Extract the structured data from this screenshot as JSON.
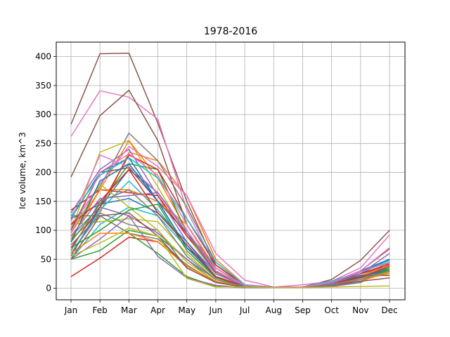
{
  "chart_data": {
    "type": "line",
    "title": "1978-2016",
    "xlabel": "",
    "ylabel": "Ice volume, km^3",
    "categories": [
      "Jan",
      "Feb",
      "Mar",
      "Apr",
      "May",
      "Jun",
      "Jul",
      "Aug",
      "Sep",
      "Oct",
      "Nov",
      "Dec"
    ],
    "ylim": [
      -20,
      425
    ],
    "yticks": [
      0,
      50,
      100,
      150,
      200,
      250,
      300,
      350,
      400
    ],
    "grid": true,
    "legend": "none",
    "colors": [
      "#1f77b4",
      "#ff7f0e",
      "#2ca02c",
      "#d62728",
      "#9467bd",
      "#8c564b",
      "#e377c2",
      "#7f7f7f",
      "#bcbd22",
      "#17becf"
    ],
    "series": [
      {
        "values": [
          120,
          200,
          225,
          150,
          70,
          30,
          4,
          2,
          2,
          10,
          30,
          50
        ]
      },
      {
        "values": [
          85,
          130,
          235,
          220,
          160,
          50,
          6,
          2,
          2,
          8,
          20,
          45
        ]
      },
      {
        "values": [
          50,
          65,
          100,
          90,
          50,
          10,
          2,
          1,
          1,
          5,
          15,
          30
        ]
      },
      {
        "values": [
          20,
          52,
          88,
          80,
          40,
          10,
          2,
          1,
          1,
          5,
          15,
          30
        ]
      },
      {
        "values": [
          130,
          205,
          240,
          160,
          80,
          25,
          3,
          2,
          2,
          8,
          25,
          40
        ]
      },
      {
        "values": [
          283,
          405,
          406,
          285,
          150,
          40,
          5,
          2,
          2,
          15,
          48,
          100
        ]
      },
      {
        "values": [
          262,
          341,
          330,
          292,
          135,
          35,
          5,
          2,
          6,
          12,
          35,
          92
        ]
      },
      {
        "values": [
          110,
          175,
          268,
          220,
          140,
          45,
          5,
          2,
          2,
          12,
          28,
          45
        ]
      },
      {
        "values": [
          100,
          235,
          255,
          175,
          90,
          25,
          3,
          2,
          2,
          8,
          20,
          40
        ]
      },
      {
        "values": [
          50,
          110,
          140,
          125,
          70,
          20,
          3,
          1,
          1,
          8,
          22,
          35
        ]
      },
      {
        "values": [
          120,
          145,
          155,
          130,
          80,
          20,
          3,
          2,
          2,
          8,
          25,
          50
        ]
      },
      {
        "values": [
          95,
          170,
          255,
          190,
          100,
          30,
          4,
          2,
          2,
          10,
          20,
          25
        ]
      },
      {
        "values": [
          125,
          125,
          95,
          60,
          20,
          3,
          1,
          1,
          1,
          3,
          10,
          35
        ]
      },
      {
        "values": [
          135,
          170,
          165,
          160,
          90,
          35,
          4,
          2,
          2,
          12,
          25,
          40
        ]
      },
      {
        "values": [
          90,
          140,
          125,
          95,
          50,
          15,
          3,
          1,
          1,
          5,
          18,
          28
        ]
      },
      {
        "values": [
          192,
          298,
          342,
          255,
          110,
          30,
          4,
          2,
          2,
          10,
          30,
          68
        ]
      },
      {
        "values": [
          105,
          180,
          245,
          210,
          160,
          60,
          14,
          2,
          2,
          10,
          30,
          70
        ]
      },
      {
        "values": [
          75,
          125,
          95,
          85,
          40,
          10,
          2,
          1,
          1,
          5,
          15,
          25
        ]
      },
      {
        "values": [
          110,
          115,
          120,
          115,
          60,
          15,
          3,
          1,
          1,
          5,
          18,
          25
        ]
      },
      {
        "values": [
          60,
          135,
          185,
          135,
          75,
          20,
          3,
          1,
          1,
          8,
          20,
          30
        ]
      },
      {
        "values": [
          55,
          140,
          205,
          165,
          95,
          40,
          5,
          2,
          2,
          10,
          28,
          50
        ]
      },
      {
        "values": [
          85,
          170,
          170,
          150,
          110,
          30,
          4,
          2,
          2,
          8,
          22,
          40
        ]
      },
      {
        "values": [
          80,
          145,
          215,
          205,
          95,
          35,
          4,
          2,
          2,
          8,
          18,
          35
        ]
      },
      {
        "values": [
          70,
          140,
          230,
          205,
          120,
          40,
          5,
          2,
          2,
          10,
          25,
          42
        ]
      },
      {
        "values": [
          50,
          85,
          125,
          55,
          18,
          5,
          1,
          1,
          1,
          3,
          10,
          45
        ]
      },
      {
        "values": [
          100,
          200,
          208,
          150,
          95,
          28,
          4,
          2,
          2,
          10,
          22,
          22
        ]
      },
      {
        "values": [
          115,
          230,
          210,
          165,
          100,
          30,
          4,
          2,
          2,
          8,
          20,
          30
        ]
      },
      {
        "values": [
          60,
          130,
          110,
          100,
          35,
          10,
          2,
          1,
          1,
          5,
          12,
          30
        ]
      },
      {
        "values": [
          95,
          180,
          140,
          100,
          45,
          12,
          3,
          1,
          1,
          5,
          15,
          28
        ]
      },
      {
        "values": [
          125,
          195,
          225,
          190,
          120,
          45,
          6,
          2,
          2,
          12,
          28,
          48
        ]
      },
      {
        "values": [
          80,
          185,
          215,
          150,
          70,
          20,
          3,
          2,
          2,
          8,
          20,
          32
        ]
      },
      {
        "values": [
          60,
          95,
          95,
          80,
          38,
          12,
          2,
          1,
          1,
          5,
          12,
          28
        ]
      },
      {
        "values": [
          70,
          100,
          135,
          145,
          65,
          18,
          3,
          1,
          1,
          5,
          15,
          32
        ]
      },
      {
        "values": [
          110,
          150,
          205,
          130,
          75,
          20,
          3,
          2,
          2,
          8,
          18,
          38
        ]
      },
      {
        "values": [
          90,
          155,
          160,
          165,
          95,
          25,
          4,
          2,
          2,
          8,
          25,
          60
        ]
      },
      {
        "values": [
          50,
          125,
          130,
          90,
          35,
          10,
          2,
          1,
          1,
          5,
          12,
          18
        ]
      },
      {
        "values": [
          95,
          200,
          232,
          195,
          110,
          35,
          5,
          2,
          2,
          10,
          28,
          45
        ]
      },
      {
        "values": [
          65,
          150,
          170,
          125,
          55,
          15,
          3,
          1,
          1,
          6,
          15,
          30
        ]
      },
      {
        "values": [
          55,
          78,
          104,
          90,
          17,
          2,
          2,
          1,
          1,
          2,
          3,
          4
        ]
      }
    ]
  }
}
